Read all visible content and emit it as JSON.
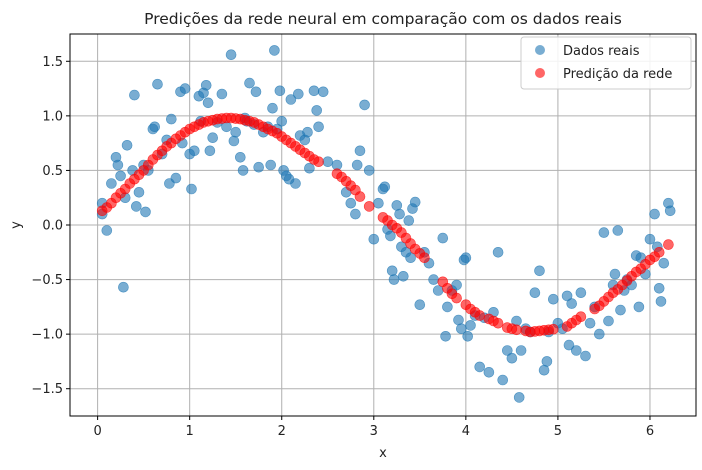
{
  "chart_data": {
    "type": "scatter",
    "title": "Predições da rede neural em comparação com os dados reais",
    "xlabel": "x",
    "ylabel": "y",
    "xlim": [
      -0.3,
      6.5
    ],
    "ylim": [
      -1.75,
      1.75
    ],
    "xticks": [
      "0",
      "1",
      "2",
      "3",
      "4",
      "5",
      "6"
    ],
    "yticks": [
      "1.5",
      "1.0",
      "0.5",
      "0.0",
      "−0.5",
      "−1.0",
      "−1.5"
    ],
    "grid": true,
    "legend_position": "top-right",
    "series": [
      {
        "name": "Dados reais",
        "color": "#1f77b4",
        "points": [
          [
            0.05,
            0.1
          ],
          [
            0.05,
            0.2
          ],
          [
            0.1,
            -0.05
          ],
          [
            0.15,
            0.38
          ],
          [
            0.2,
            0.62
          ],
          [
            0.22,
            0.55
          ],
          [
            0.25,
            0.45
          ],
          [
            0.28,
            -0.57
          ],
          [
            0.3,
            0.25
          ],
          [
            0.32,
            0.73
          ],
          [
            0.38,
            0.5
          ],
          [
            0.4,
            1.19
          ],
          [
            0.42,
            0.17
          ],
          [
            0.45,
            0.3
          ],
          [
            0.5,
            0.55
          ],
          [
            0.52,
            0.12
          ],
          [
            0.55,
            0.5
          ],
          [
            0.6,
            0.88
          ],
          [
            0.62,
            0.9
          ],
          [
            0.65,
            1.29
          ],
          [
            0.7,
            0.65
          ],
          [
            0.75,
            0.78
          ],
          [
            0.78,
            0.38
          ],
          [
            0.8,
            0.97
          ],
          [
            0.85,
            0.43
          ],
          [
            0.9,
            1.22
          ],
          [
            0.92,
            0.75
          ],
          [
            0.95,
            1.25
          ],
          [
            1.0,
            0.65
          ],
          [
            1.02,
            0.33
          ],
          [
            1.05,
            0.68
          ],
          [
            1.1,
            1.18
          ],
          [
            1.12,
            0.95
          ],
          [
            1.15,
            1.21
          ],
          [
            1.18,
            1.28
          ],
          [
            1.2,
            1.12
          ],
          [
            1.22,
            0.68
          ],
          [
            1.25,
            0.8
          ],
          [
            1.3,
            0.94
          ],
          [
            1.35,
            1.2
          ],
          [
            1.4,
            0.9
          ],
          [
            1.45,
            1.56
          ],
          [
            1.48,
            0.77
          ],
          [
            1.5,
            0.85
          ],
          [
            1.55,
            0.62
          ],
          [
            1.58,
            0.5
          ],
          [
            1.6,
            0.98
          ],
          [
            1.62,
            0.95
          ],
          [
            1.65,
            1.3
          ],
          [
            1.7,
            0.92
          ],
          [
            1.72,
            1.22
          ],
          [
            1.75,
            0.53
          ],
          [
            1.8,
            0.85
          ],
          [
            1.85,
            0.9
          ],
          [
            1.88,
            0.55
          ],
          [
            1.9,
            1.07
          ],
          [
            1.92,
            1.6
          ],
          [
            1.95,
            0.88
          ],
          [
            1.98,
            1.23
          ],
          [
            2.0,
            0.95
          ],
          [
            2.02,
            0.5
          ],
          [
            2.05,
            0.45
          ],
          [
            2.08,
            0.42
          ],
          [
            2.1,
            1.15
          ],
          [
            2.15,
            0.38
          ],
          [
            2.18,
            1.2
          ],
          [
            2.2,
            0.82
          ],
          [
            2.25,
            0.78
          ],
          [
            2.28,
            0.85
          ],
          [
            2.3,
            0.52
          ],
          [
            2.35,
            1.23
          ],
          [
            2.38,
            1.05
          ],
          [
            2.4,
            0.9
          ],
          [
            2.45,
            1.22
          ],
          [
            2.5,
            0.58
          ],
          [
            2.6,
            0.55
          ],
          [
            2.7,
            0.3
          ],
          [
            2.75,
            0.2
          ],
          [
            2.8,
            0.1
          ],
          [
            2.82,
            0.55
          ],
          [
            2.85,
            0.68
          ],
          [
            2.9,
            1.1
          ],
          [
            2.95,
            0.5
          ],
          [
            3.0,
            -0.13
          ],
          [
            3.05,
            0.2
          ],
          [
            3.1,
            0.33
          ],
          [
            3.12,
            0.35
          ],
          [
            3.15,
            -0.04
          ],
          [
            3.18,
            -0.1
          ],
          [
            3.2,
            -0.42
          ],
          [
            3.22,
            -0.5
          ],
          [
            3.25,
            0.18
          ],
          [
            3.28,
            0.1
          ],
          [
            3.3,
            -0.2
          ],
          [
            3.32,
            -0.47
          ],
          [
            3.35,
            -0.25
          ],
          [
            3.38,
            0.04
          ],
          [
            3.4,
            -0.3
          ],
          [
            3.42,
            0.15
          ],
          [
            3.45,
            0.21
          ],
          [
            3.5,
            -0.73
          ],
          [
            3.55,
            -0.25
          ],
          [
            3.6,
            -0.35
          ],
          [
            3.65,
            -0.5
          ],
          [
            3.7,
            -0.6
          ],
          [
            3.75,
            -0.12
          ],
          [
            3.78,
            -1.02
          ],
          [
            3.8,
            -0.75
          ],
          [
            3.85,
            -0.6
          ],
          [
            3.9,
            -0.55
          ],
          [
            3.92,
            -0.87
          ],
          [
            3.95,
            -0.95
          ],
          [
            3.98,
            -0.32
          ],
          [
            4.0,
            -0.3
          ],
          [
            4.02,
            -1.02
          ],
          [
            4.05,
            -0.92
          ],
          [
            4.1,
            -0.83
          ],
          [
            4.15,
            -1.3
          ],
          [
            4.2,
            -0.85
          ],
          [
            4.25,
            -1.35
          ],
          [
            4.3,
            -0.8
          ],
          [
            4.35,
            -0.25
          ],
          [
            4.4,
            -1.42
          ],
          [
            4.45,
            -1.15
          ],
          [
            4.5,
            -1.22
          ],
          [
            4.55,
            -0.88
          ],
          [
            4.58,
            -1.58
          ],
          [
            4.6,
            -1.15
          ],
          [
            4.65,
            -0.95
          ],
          [
            4.7,
            -0.98
          ],
          [
            4.75,
            -0.62
          ],
          [
            4.8,
            -0.42
          ],
          [
            4.85,
            -1.33
          ],
          [
            4.88,
            -1.25
          ],
          [
            4.9,
            -0.98
          ],
          [
            4.95,
            -0.68
          ],
          [
            5.0,
            -0.9
          ],
          [
            5.05,
            -0.95
          ],
          [
            5.1,
            -0.65
          ],
          [
            5.12,
            -1.1
          ],
          [
            5.15,
            -0.72
          ],
          [
            5.2,
            -1.15
          ],
          [
            5.25,
            -0.62
          ],
          [
            5.3,
            -1.2
          ],
          [
            5.35,
            -0.9
          ],
          [
            5.4,
            -0.75
          ],
          [
            5.45,
            -1.0
          ],
          [
            5.5,
            -0.07
          ],
          [
            5.55,
            -0.88
          ],
          [
            5.6,
            -0.55
          ],
          [
            5.62,
            -0.45
          ],
          [
            5.65,
            -0.05
          ],
          [
            5.68,
            -0.78
          ],
          [
            5.72,
            -0.6
          ],
          [
            5.75,
            -0.5
          ],
          [
            5.8,
            -0.55
          ],
          [
            5.85,
            -0.28
          ],
          [
            5.88,
            -0.75
          ],
          [
            5.9,
            -0.3
          ],
          [
            5.95,
            -0.45
          ],
          [
            6.0,
            -0.13
          ],
          [
            6.05,
            0.1
          ],
          [
            6.08,
            -0.2
          ],
          [
            6.1,
            -0.58
          ],
          [
            6.12,
            -0.7
          ],
          [
            6.15,
            -0.35
          ],
          [
            6.2,
            0.2
          ],
          [
            6.22,
            0.13
          ]
        ]
      },
      {
        "name": "Predição da rede",
        "color": "#ff0000",
        "points": [
          [
            0.05,
            0.13
          ],
          [
            0.1,
            0.16
          ],
          [
            0.15,
            0.2
          ],
          [
            0.2,
            0.25
          ],
          [
            0.25,
            0.29
          ],
          [
            0.3,
            0.33
          ],
          [
            0.35,
            0.38
          ],
          [
            0.4,
            0.42
          ],
          [
            0.45,
            0.46
          ],
          [
            0.5,
            0.5
          ],
          [
            0.55,
            0.55
          ],
          [
            0.6,
            0.6
          ],
          [
            0.65,
            0.64
          ],
          [
            0.7,
            0.68
          ],
          [
            0.75,
            0.72
          ],
          [
            0.8,
            0.75
          ],
          [
            0.85,
            0.79
          ],
          [
            0.9,
            0.82
          ],
          [
            0.95,
            0.85
          ],
          [
            1.0,
            0.88
          ],
          [
            1.05,
            0.9
          ],
          [
            1.1,
            0.92
          ],
          [
            1.15,
            0.94
          ],
          [
            1.2,
            0.95
          ],
          [
            1.25,
            0.96
          ],
          [
            1.3,
            0.97
          ],
          [
            1.35,
            0.975
          ],
          [
            1.4,
            0.98
          ],
          [
            1.45,
            0.98
          ],
          [
            1.5,
            0.975
          ],
          [
            1.55,
            0.97
          ],
          [
            1.6,
            0.96
          ],
          [
            1.65,
            0.95
          ],
          [
            1.7,
            0.94
          ],
          [
            1.75,
            0.92
          ],
          [
            1.8,
            0.9
          ],
          [
            1.85,
            0.88
          ],
          [
            1.9,
            0.86
          ],
          [
            1.95,
            0.84
          ],
          [
            2.0,
            0.81
          ],
          [
            2.05,
            0.78
          ],
          [
            2.1,
            0.75
          ],
          [
            2.15,
            0.72
          ],
          [
            2.2,
            0.69
          ],
          [
            2.25,
            0.66
          ],
          [
            2.3,
            0.63
          ],
          [
            2.35,
            0.6
          ],
          [
            2.4,
            0.58
          ],
          [
            2.6,
            0.47
          ],
          [
            2.65,
            0.44
          ],
          [
            2.7,
            0.4
          ],
          [
            2.75,
            0.36
          ],
          [
            2.8,
            0.32
          ],
          [
            2.85,
            0.26
          ],
          [
            2.95,
            0.17
          ],
          [
            3.1,
            0.07
          ],
          [
            3.15,
            0.04
          ],
          [
            3.2,
            0.0
          ],
          [
            3.25,
            -0.03
          ],
          [
            3.3,
            -0.07
          ],
          [
            3.35,
            -0.12
          ],
          [
            3.4,
            -0.17
          ],
          [
            3.45,
            -0.22
          ],
          [
            3.5,
            -0.26
          ],
          [
            3.55,
            -0.3
          ],
          [
            3.75,
            -0.52
          ],
          [
            3.8,
            -0.58
          ],
          [
            3.85,
            -0.63
          ],
          [
            3.9,
            -0.67
          ],
          [
            4.0,
            -0.73
          ],
          [
            4.05,
            -0.77
          ],
          [
            4.1,
            -0.8
          ],
          [
            4.15,
            -0.83
          ],
          [
            4.25,
            -0.86
          ],
          [
            4.3,
            -0.88
          ],
          [
            4.35,
            -0.9
          ],
          [
            4.45,
            -0.94
          ],
          [
            4.5,
            -0.95
          ],
          [
            4.55,
            -0.96
          ],
          [
            4.65,
            -0.97
          ],
          [
            4.7,
            -0.98
          ],
          [
            4.75,
            -0.975
          ],
          [
            4.8,
            -0.97
          ],
          [
            4.85,
            -0.965
          ],
          [
            4.9,
            -0.96
          ],
          [
            4.95,
            -0.955
          ],
          [
            5.1,
            -0.93
          ],
          [
            5.15,
            -0.9
          ],
          [
            5.2,
            -0.87
          ],
          [
            5.25,
            -0.84
          ],
          [
            5.4,
            -0.77
          ],
          [
            5.45,
            -0.74
          ],
          [
            5.5,
            -0.7
          ],
          [
            5.55,
            -0.66
          ],
          [
            5.6,
            -0.62
          ],
          [
            5.65,
            -0.59
          ],
          [
            5.7,
            -0.55
          ],
          [
            5.75,
            -0.51
          ],
          [
            5.8,
            -0.47
          ],
          [
            5.85,
            -0.43
          ],
          [
            5.9,
            -0.4
          ],
          [
            5.95,
            -0.36
          ],
          [
            6.0,
            -0.32
          ],
          [
            6.05,
            -0.29
          ],
          [
            6.1,
            -0.25
          ],
          [
            6.2,
            -0.18
          ]
        ]
      }
    ]
  }
}
